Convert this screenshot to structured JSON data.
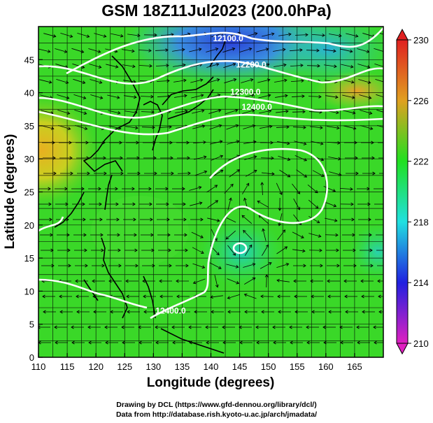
{
  "title": "GSM 18Z11Jul2023 (200.0hPa)",
  "x_axis": {
    "label": "Longitude (degrees)",
    "range": [
      110,
      170
    ],
    "ticks": [
      "110",
      "115",
      "120",
      "125",
      "130",
      "135",
      "140",
      "145",
      "150",
      "155",
      "160",
      "165"
    ]
  },
  "y_axis": {
    "label": "Latitude  (degrees)",
    "range": [
      0,
      50
    ],
    "ticks": [
      "0",
      "5",
      "10",
      "15",
      "20",
      "25",
      "30",
      "35",
      "40",
      "45"
    ]
  },
  "colorbar": {
    "ticks": [
      "210",
      "214",
      "218",
      "222",
      "226",
      "230"
    ],
    "range": [
      210,
      230
    ],
    "colors": [
      "#e020c0",
      "#2020e0",
      "#20e0e0",
      "#20e020",
      "#e0a020",
      "#e02020"
    ]
  },
  "contours": [
    {
      "label": "12100.0",
      "lon": 143,
      "lat": 47.8
    },
    {
      "label": "12200.0",
      "lon": 147,
      "lat": 43.8
    },
    {
      "label": "12300.0",
      "lon": 146,
      "lat": 39.7
    },
    {
      "label": "12400.0",
      "lon": 148,
      "lat": 37.4
    },
    {
      "label": "12400.0",
      "lon": 133,
      "lat": 6.6
    }
  ],
  "credits": {
    "line1": "Drawing by DCL (https://www.gfd-dennou.org/library/dcl/)",
    "line2": "Data from http://database.rish.kyoto-u.ac.jp/arch/jmadata/"
  }
}
